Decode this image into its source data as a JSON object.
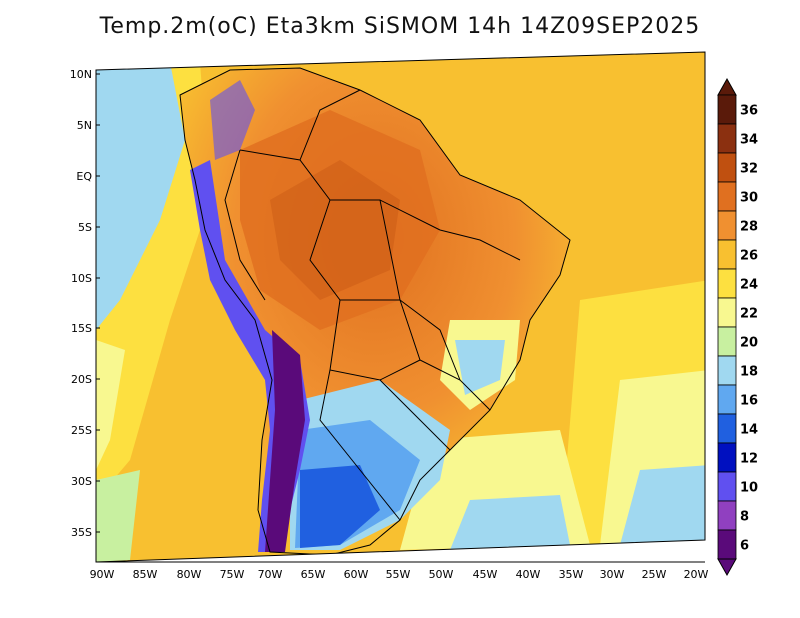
{
  "title": "Temp.2m(oC) Eta3km SiSMOM 14h 14Z09SEP2025",
  "lat_labels": [
    "10N",
    "5N",
    "EQ",
    "5S",
    "10S",
    "15S",
    "20S",
    "25S",
    "30S",
    "35S"
  ],
  "lon_labels": [
    "90W",
    "85W",
    "80W",
    "75W",
    "70W",
    "65W",
    "60W",
    "55W",
    "50W",
    "45W",
    "40W",
    "35W",
    "30W",
    "25W",
    "20W"
  ],
  "colorbar": {
    "labels": [
      "36",
      "34",
      "32",
      "30",
      "28",
      "26",
      "24",
      "22",
      "20",
      "18",
      "16",
      "14",
      "12",
      "10",
      "8",
      "6"
    ],
    "colors": [
      "#5a1a0a",
      "#8b3010",
      "#c05010",
      "#e07020",
      "#f09030",
      "#f8c030",
      "#fde040",
      "#f8f890",
      "#c8f0a0",
      "#a0d8f0",
      "#60a8f0",
      "#2060e0",
      "#0010c0",
      "#6050f0",
      "#9040c0",
      "#5a0a7a"
    ]
  },
  "colors": {
    "ocean_warm": "#f8c030",
    "ocean_mid": "#fde040",
    "ocean_cool": "#a0d8f0",
    "land_hot": "#e07020",
    "land_warm": "#f09030",
    "andes_cold": "#6050f0",
    "andes_coldest": "#5a0a7a",
    "south_cool": "#60a8f0"
  }
}
